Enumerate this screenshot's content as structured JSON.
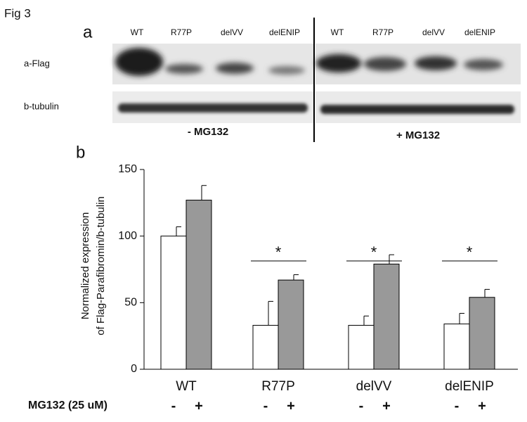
{
  "figure": {
    "label": "Fig 3",
    "panel_a": "a",
    "panel_b": "b",
    "lanes": [
      "WT",
      "R77P",
      "delVV",
      "delENIP",
      "WT",
      "R77P",
      "delVV",
      "delENIP"
    ],
    "rows": [
      "a-Flag",
      "b-tubulin"
    ],
    "conditions": [
      "- MG132",
      "+ MG132"
    ]
  },
  "chart_data": {
    "type": "bar",
    "categories": [
      "WT",
      "R77P",
      "delVV",
      "delENIP"
    ],
    "series": [
      {
        "name": "-",
        "color": "#ffffff",
        "values": [
          100,
          33,
          33,
          34
        ],
        "errors": [
          7,
          18,
          7,
          8
        ]
      },
      {
        "name": "+",
        "color": "#999999",
        "values": [
          127,
          67,
          79,
          54
        ],
        "errors": [
          11,
          4,
          7,
          6
        ]
      }
    ],
    "ylabel": [
      "Normalized expression",
      "of Flag-Parafibromin/b-tubulin"
    ],
    "ylim": [
      0,
      150
    ],
    "yticks": [
      0,
      50,
      100,
      150
    ],
    "xrow_label": "MG132 (25 uM)",
    "annotations": [
      {
        "x": "R77P",
        "text": "*"
      },
      {
        "x": "delVV",
        "text": "*"
      },
      {
        "x": "delENIP",
        "text": "*"
      }
    ]
  }
}
